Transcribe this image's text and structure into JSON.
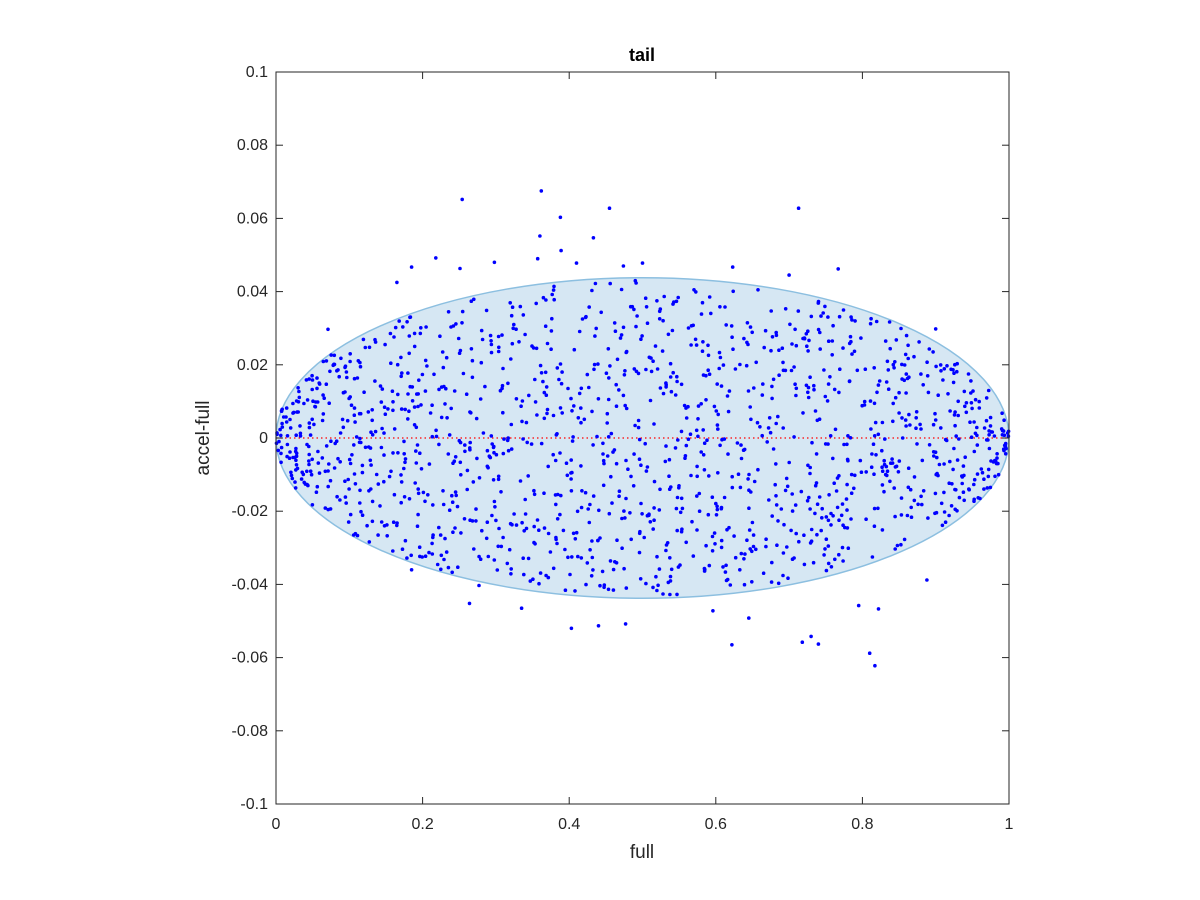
{
  "chart_data": {
    "type": "scatter",
    "title": "tail",
    "xlabel": "full",
    "ylabel": "accel-full",
    "xlim": [
      0,
      1
    ],
    "ylim": [
      -0.1,
      0.1
    ],
    "xticks": [
      0,
      0.2,
      0.4,
      0.6,
      0.8,
      1
    ],
    "xtick_labels": [
      "0",
      "0.2",
      "0.4",
      "0.6",
      "0.8",
      "1"
    ],
    "yticks": [
      -0.1,
      -0.08,
      -0.06,
      -0.04,
      -0.02,
      0,
      0.02,
      0.04,
      0.06,
      0.08,
      0.1
    ],
    "ytick_labels": [
      "-0.1",
      "-0.08",
      "-0.06",
      "-0.04",
      "-0.02",
      "0",
      "0.02",
      "0.04",
      "0.06",
      "0.08",
      "0.1"
    ],
    "grid": false,
    "reference_line": {
      "y": 0,
      "style": "dotted",
      "color": "#ff0000"
    },
    "ellipse": {
      "cx": 0.5,
      "cy": 0,
      "rx": 0.5,
      "ry": 0.0438,
      "fill": "#d6e7f3",
      "stroke": "#8cbfe0"
    },
    "point_color": "#0000ff",
    "highlighted_points": [
      [
        0.254,
        0.0652
      ],
      [
        0.362,
        0.0675
      ],
      [
        0.455,
        0.0628
      ],
      [
        0.713,
        0.0628
      ],
      [
        0.388,
        0.0603
      ],
      [
        0.36,
        0.0552
      ],
      [
        0.433,
        0.0547
      ],
      [
        0.389,
        0.0512
      ],
      [
        0.357,
        0.049
      ],
      [
        0.218,
        0.0492
      ],
      [
        0.298,
        0.048
      ],
      [
        0.185,
        0.0467
      ],
      [
        0.251,
        0.0463
      ],
      [
        0.41,
        0.0478
      ],
      [
        0.474,
        0.047
      ],
      [
        0.5,
        0.0478
      ],
      [
        0.623,
        0.0467
      ],
      [
        0.7,
        0.0445
      ],
      [
        0.767,
        0.0462
      ],
      [
        0.165,
        0.0425
      ],
      [
        0.071,
        0.0297
      ],
      [
        0.9,
        0.0298
      ],
      [
        0.403,
        -0.052
      ],
      [
        0.44,
        -0.0513
      ],
      [
        0.477,
        -0.0508
      ],
      [
        0.264,
        -0.0452
      ],
      [
        0.335,
        -0.0465
      ],
      [
        0.185,
        -0.036
      ],
      [
        0.596,
        -0.0472
      ],
      [
        0.622,
        -0.0565
      ],
      [
        0.645,
        -0.0492
      ],
      [
        0.718,
        -0.0558
      ],
      [
        0.73,
        -0.0542
      ],
      [
        0.74,
        -0.0563
      ],
      [
        0.795,
        -0.0458
      ],
      [
        0.81,
        -0.0588
      ],
      [
        0.817,
        -0.0622
      ],
      [
        0.822,
        -0.0467
      ],
      [
        0.888,
        -0.0388
      ],
      [
        0.106,
        -0.0265
      ],
      [
        0.213,
        -0.0288
      ],
      [
        0.248,
        -0.0353
      ],
      [
        0.277,
        -0.0403
      ],
      [
        0.99,
        0.0025
      ]
    ],
    "generated_points": {
      "n": 1450,
      "x_range": [
        0,
        1
      ],
      "y_spread_max": 0.043,
      "seed": 7
    }
  }
}
